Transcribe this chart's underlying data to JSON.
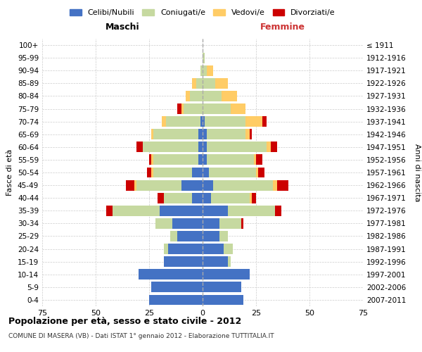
{
  "age_groups": [
    "0-4",
    "5-9",
    "10-14",
    "15-19",
    "20-24",
    "25-29",
    "30-34",
    "35-39",
    "40-44",
    "45-49",
    "50-54",
    "55-59",
    "60-64",
    "65-69",
    "70-74",
    "75-79",
    "80-84",
    "85-89",
    "90-94",
    "95-99",
    "100+"
  ],
  "birth_years": [
    "2007-2011",
    "2002-2006",
    "1997-2001",
    "1992-1996",
    "1987-1991",
    "1982-1986",
    "1977-1981",
    "1972-1976",
    "1967-1971",
    "1962-1966",
    "1957-1961",
    "1952-1956",
    "1947-1951",
    "1942-1946",
    "1937-1941",
    "1932-1936",
    "1927-1931",
    "1922-1926",
    "1917-1921",
    "1912-1916",
    "≤ 1911"
  ],
  "male_celibe": [
    25,
    24,
    30,
    18,
    16,
    12,
    14,
    20,
    5,
    10,
    5,
    2,
    2,
    2,
    1,
    0,
    0,
    0,
    0,
    0,
    0
  ],
  "male_coniugato": [
    0,
    0,
    0,
    0,
    2,
    3,
    8,
    22,
    13,
    21,
    18,
    21,
    26,
    21,
    16,
    9,
    6,
    3,
    1,
    0,
    0
  ],
  "male_vedovo": [
    0,
    0,
    0,
    0,
    0,
    0,
    0,
    0,
    0,
    1,
    1,
    1,
    0,
    1,
    2,
    1,
    2,
    2,
    0,
    0,
    0
  ],
  "male_divorziato": [
    0,
    0,
    0,
    0,
    0,
    0,
    0,
    3,
    3,
    4,
    2,
    1,
    3,
    0,
    0,
    2,
    0,
    0,
    0,
    0,
    0
  ],
  "female_celibe": [
    19,
    18,
    22,
    12,
    10,
    8,
    8,
    12,
    4,
    5,
    3,
    2,
    2,
    2,
    1,
    0,
    0,
    0,
    0,
    0,
    0
  ],
  "female_coniugato": [
    0,
    0,
    0,
    1,
    4,
    4,
    10,
    22,
    18,
    28,
    22,
    22,
    28,
    18,
    19,
    13,
    9,
    6,
    2,
    1,
    0
  ],
  "female_vedovo": [
    0,
    0,
    0,
    0,
    0,
    0,
    0,
    0,
    1,
    2,
    1,
    1,
    2,
    2,
    8,
    7,
    7,
    6,
    3,
    0,
    0
  ],
  "female_divorziato": [
    0,
    0,
    0,
    0,
    0,
    0,
    1,
    3,
    2,
    5,
    3,
    3,
    3,
    1,
    2,
    0,
    0,
    0,
    0,
    0,
    0
  ],
  "color_celibe": "#4472C4",
  "color_coniugato": "#C6D9A0",
  "color_vedovo": "#FFCC66",
  "color_divorziato": "#CC0000",
  "title": "Popolazione per età, sesso e stato civile - 2012",
  "subtitle": "COMUNE DI MASERA (VB) - Dati ISTAT 1° gennaio 2012 - Elaborazione TUTTITALIA.IT",
  "xlabel_left": "Maschi",
  "xlabel_right": "Femmine",
  "ylabel_left": "Fasce di età",
  "ylabel_right": "Anni di nascita",
  "xlim": 75,
  "legend_labels": [
    "Celibi/Nubili",
    "Coniugati/e",
    "Vedovi/e",
    "Divorziati/e"
  ]
}
